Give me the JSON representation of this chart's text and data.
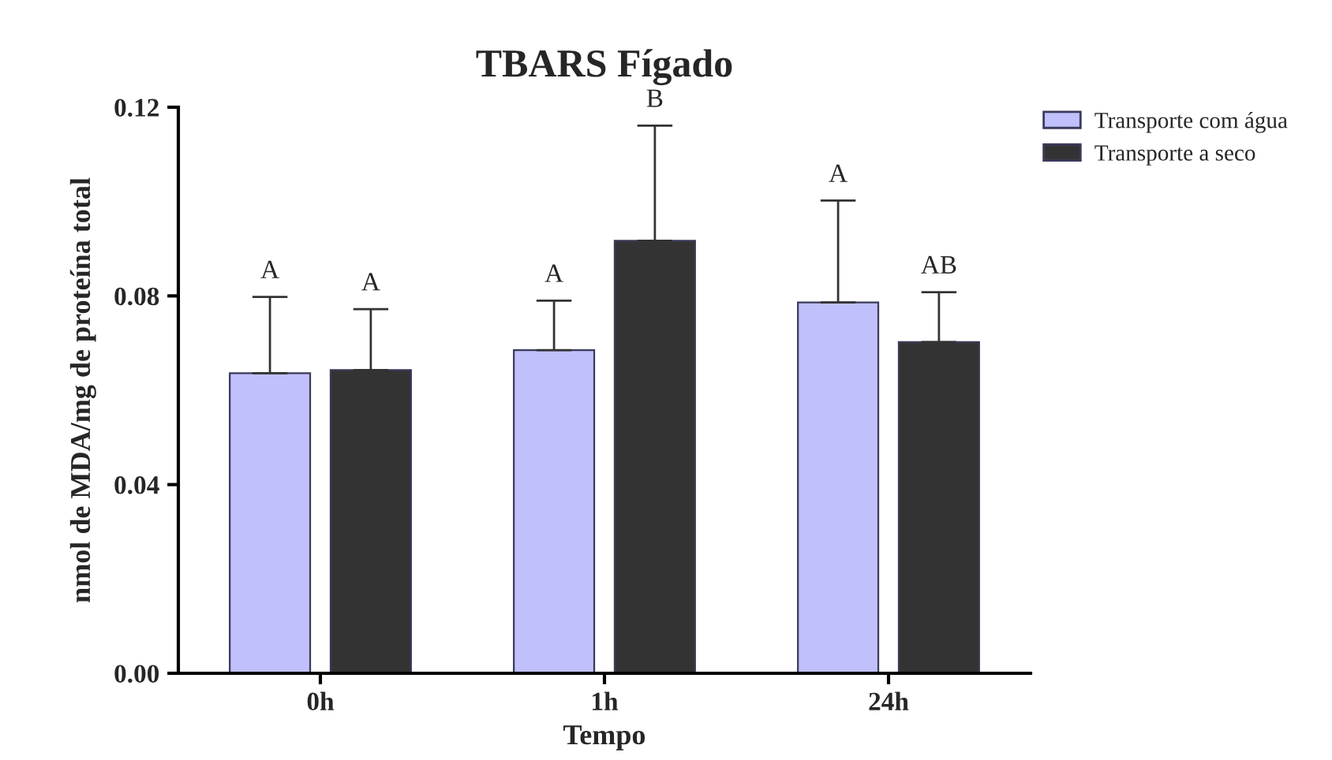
{
  "chart_data": {
    "type": "bar",
    "title": "TBARS Fígado",
    "xlabel": "Tempo",
    "ylabel": "nmol de MDA/mg de proteína total",
    "categories": [
      "0h",
      "1h",
      "24h"
    ],
    "series": [
      {
        "name": "Transporte com água",
        "color": "#c0c0fc",
        "values": [
          0.0636,
          0.0685,
          0.0786
        ],
        "errors": [
          [
            0.0636,
            0.0798
          ],
          [
            0.0685,
            0.079
          ],
          [
            0.0786,
            0.1002
          ]
        ]
      },
      {
        "name": "Transporte a seco",
        "color": "#333333",
        "values": [
          0.0643,
          0.0917,
          0.0702
        ],
        "errors": [
          [
            0.0643,
            0.0772
          ],
          [
            0.0917,
            0.1161
          ],
          [
            0.0702,
            0.0808
          ]
        ]
      }
    ],
    "annotations": [
      "A",
      "A",
      "A",
      "B",
      "A",
      "AB"
    ],
    "ylim": [
      0,
      0.12
    ],
    "yticks": [
      {
        "value": 0,
        "label": "0.00"
      },
      {
        "value": 0.04,
        "label": "0.04"
      },
      {
        "value": 0.08,
        "label": "0.08"
      },
      {
        "value": 0.12,
        "label": "0.12"
      }
    ],
    "grid": false,
    "legend": "top right"
  }
}
